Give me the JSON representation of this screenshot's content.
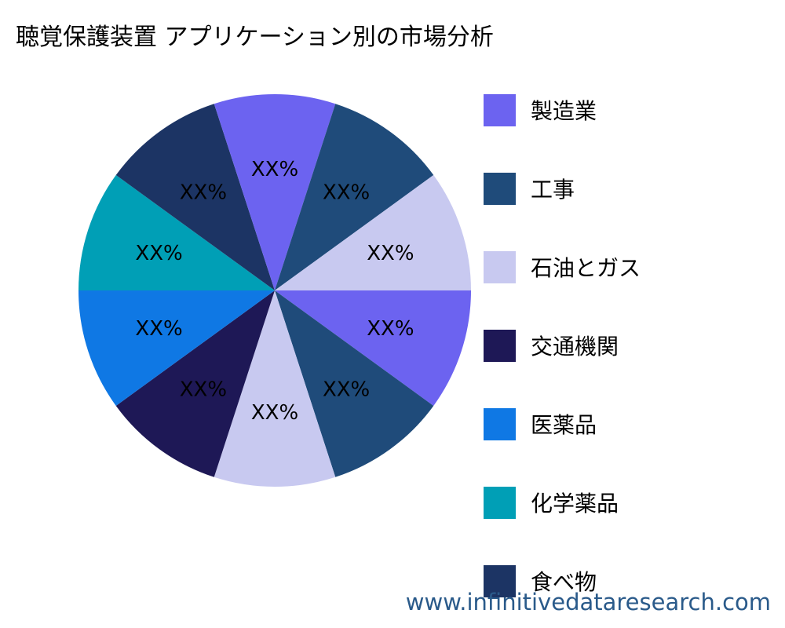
{
  "title": "聴覚保護装置 アプリケーション別の市場分析",
  "watermark": "www.infinitivedataresearch.com",
  "chart_data": {
    "type": "pie",
    "title": "聴覚保護装置 アプリケーション別の市場分析",
    "slices": [
      {
        "category": "製造業",
        "value": 10,
        "label": "XX%",
        "color": "#6c63f0"
      },
      {
        "category": "工事",
        "value": 10,
        "label": "XX%",
        "color": "#1f4b7a"
      },
      {
        "category": "石油とガス",
        "value": 10,
        "label": "XX%",
        "color": "#c8c9f0"
      },
      {
        "category": "交通機関",
        "value": 10,
        "label": "XX%",
        "color": "#1e1856"
      },
      {
        "category": "医薬品",
        "value": 10,
        "label": "XX%",
        "color": "#0f78e4"
      },
      {
        "category": "化学薬品",
        "value": 10,
        "label": "XX%",
        "color": "#009fb6"
      },
      {
        "category": "食べ物",
        "value": 10,
        "label": "XX%",
        "color": "#1c3464"
      },
      {
        "category": "",
        "value": 10,
        "label": "XX%",
        "color": "#6c63f0"
      },
      {
        "category": "",
        "value": 10,
        "label": "XX%",
        "color": "#1f4b7a"
      },
      {
        "category": "",
        "value": 10,
        "label": "XX%",
        "color": "#c8c9f0"
      }
    ],
    "legend": [
      {
        "label": "製造業",
        "color": "#6c63f0"
      },
      {
        "label": "工事",
        "color": "#1f4b7a"
      },
      {
        "label": "石油とガス",
        "color": "#c8c9f0"
      },
      {
        "label": "交通機関",
        "color": "#1e1856"
      },
      {
        "label": "医薬品",
        "color": "#0f78e4"
      },
      {
        "label": "化学薬品",
        "color": "#009fb6"
      },
      {
        "label": "食べ物",
        "color": "#1c3464"
      }
    ],
    "legend_position": "right",
    "start_angle_deg": 0,
    "direction": "clockwise"
  }
}
